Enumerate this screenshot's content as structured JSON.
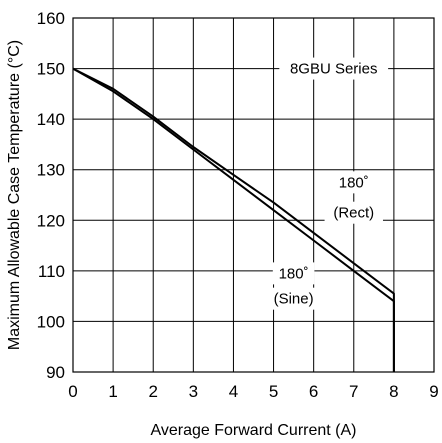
{
  "chart_data": {
    "type": "line",
    "title": "",
    "xlabel": "Average Forward Current (A)",
    "ylabel": "Maximum Allowable Case Temperature (°C)",
    "xlim": [
      0,
      9
    ],
    "ylim": [
      90,
      160
    ],
    "x_ticks": [
      "0",
      "1",
      "2",
      "3",
      "4",
      "5",
      "6",
      "7",
      "8",
      "9"
    ],
    "y_ticks": [
      "90",
      "100",
      "110",
      "120",
      "130",
      "140",
      "150",
      "160"
    ],
    "grid": true,
    "series": [
      {
        "name": "180° (Rect)",
        "x": [
          0,
          1,
          2,
          3,
          4,
          5,
          6,
          7,
          8,
          8
        ],
        "y": [
          150,
          146,
          140.5,
          134.5,
          129,
          123.5,
          117.5,
          111.5,
          105.5,
          90
        ]
      },
      {
        "name": "180° (Sine)",
        "x": [
          0,
          1,
          2,
          3,
          4,
          5,
          6,
          7,
          8,
          8
        ],
        "y": [
          150,
          145.5,
          140,
          134,
          128,
          122,
          116,
          110,
          104,
          90
        ]
      }
    ],
    "annotations": [
      {
        "text": "8GBU  Series",
        "x": 6.5,
        "y": 150
      },
      {
        "text": "180˚",
        "x": 7,
        "y": 127.5
      },
      {
        "text": "(Rect)",
        "x": 7,
        "y": 121.5
      },
      {
        "text": "180˚",
        "x": 5.5,
        "y": 109.5
      },
      {
        "text": "(Sine)",
        "x": 5.5,
        "y": 104.5
      }
    ]
  }
}
